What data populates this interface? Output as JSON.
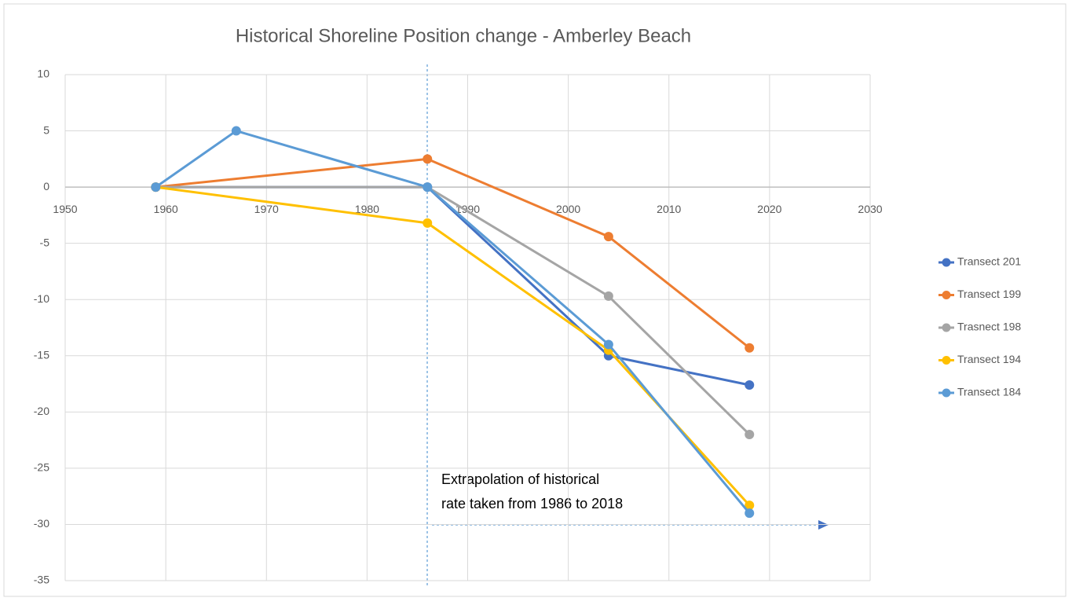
{
  "chart_data": {
    "type": "line",
    "title": "Historical Shoreline Position change - Amberley Beach",
    "xlim": [
      1950,
      2030
    ],
    "xticks": [
      1950,
      1960,
      1970,
      1980,
      1990,
      2000,
      2010,
      2020,
      2030
    ],
    "ylim": [
      -35,
      10
    ],
    "yticks": [
      -35,
      -30,
      -25,
      -20,
      -15,
      -10,
      -5,
      0,
      5,
      10
    ],
    "grid": true,
    "legend": "right",
    "series": [
      {
        "name": "Transect 201",
        "color": "#4472c4",
        "x": [
          1959,
          1986,
          2004,
          2018
        ],
        "values": [
          0,
          0,
          -15,
          -17.6
        ]
      },
      {
        "name": "Transect 199",
        "color": "#ed7d31",
        "x": [
          1959,
          1986,
          2004,
          2018
        ],
        "values": [
          0,
          2.5,
          -4.4,
          -14.3
        ]
      },
      {
        "name": "Trasnect 198",
        "color": "#a5a5a5",
        "x": [
          1959,
          1986,
          2004,
          2018
        ],
        "values": [
          0,
          0,
          -9.7,
          -22
        ]
      },
      {
        "name": "Transect 194",
        "color": "#ffc000",
        "x": [
          1959,
          1986,
          2004,
          2018
        ],
        "values": [
          0,
          -3.2,
          -14.5,
          -28.3
        ]
      },
      {
        "name": "Transect 184",
        "color": "#5b9bd5",
        "x": [
          1959,
          1967,
          1986,
          2004,
          2018
        ],
        "values": [
          0,
          5,
          0,
          -14,
          -29
        ]
      }
    ],
    "annotation": [
      "Extrapolation of historical",
      "rate taken from 1986 to 2018"
    ]
  }
}
